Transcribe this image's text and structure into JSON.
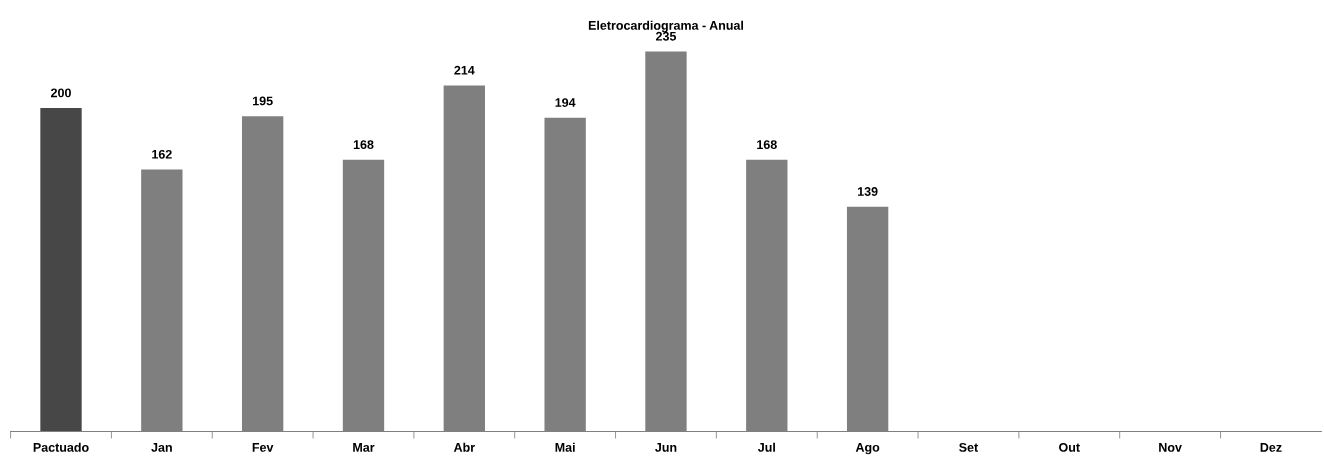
{
  "chart_data": {
    "type": "bar",
    "title": "Eletrocardiograma - Anual",
    "categories": [
      "Pactuado",
      "Jan",
      "Fev",
      "Mar",
      "Abr",
      "Mai",
      "Jun",
      "Jul",
      "Ago",
      "Set",
      "Out",
      "Nov",
      "Dez"
    ],
    "values": [
      200,
      162,
      195,
      168,
      214,
      194,
      235,
      168,
      139,
      null,
      null,
      null,
      null
    ],
    "colors": [
      "#474747",
      "#7f7f7f",
      "#7f7f7f",
      "#7f7f7f",
      "#7f7f7f",
      "#7f7f7f",
      "#7f7f7f",
      "#7f7f7f",
      "#7f7f7f",
      "#7f7f7f",
      "#7f7f7f",
      "#7f7f7f",
      "#7f7f7f"
    ],
    "data_labels": true,
    "tick_labels": "x",
    "grid": false
  }
}
